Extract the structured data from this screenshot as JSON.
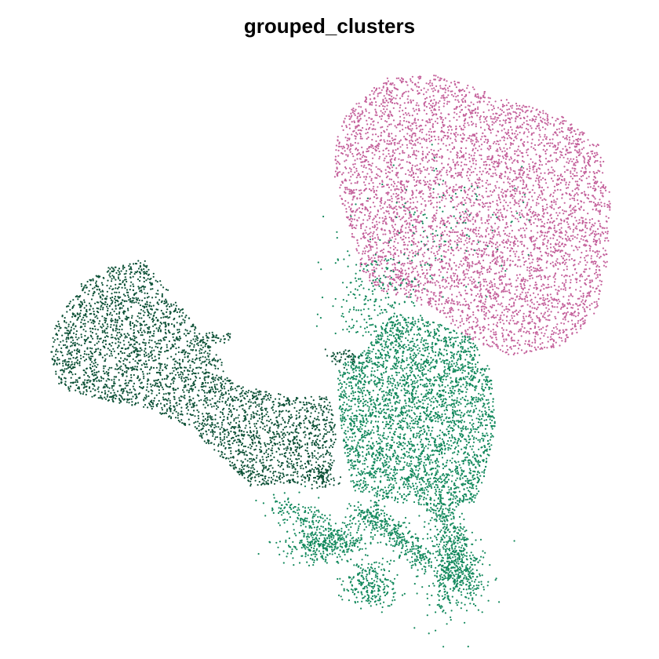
{
  "chart_data": {
    "type": "scatter",
    "title": "grouped_clusters",
    "xlabel": "",
    "ylabel": "",
    "grid": false,
    "axes_visible": false,
    "legend": "none",
    "series": [
      {
        "color": "#C4619B"
      },
      {
        "color": "#13895D"
      },
      {
        "color": "#0E5238"
      }
    ]
  }
}
